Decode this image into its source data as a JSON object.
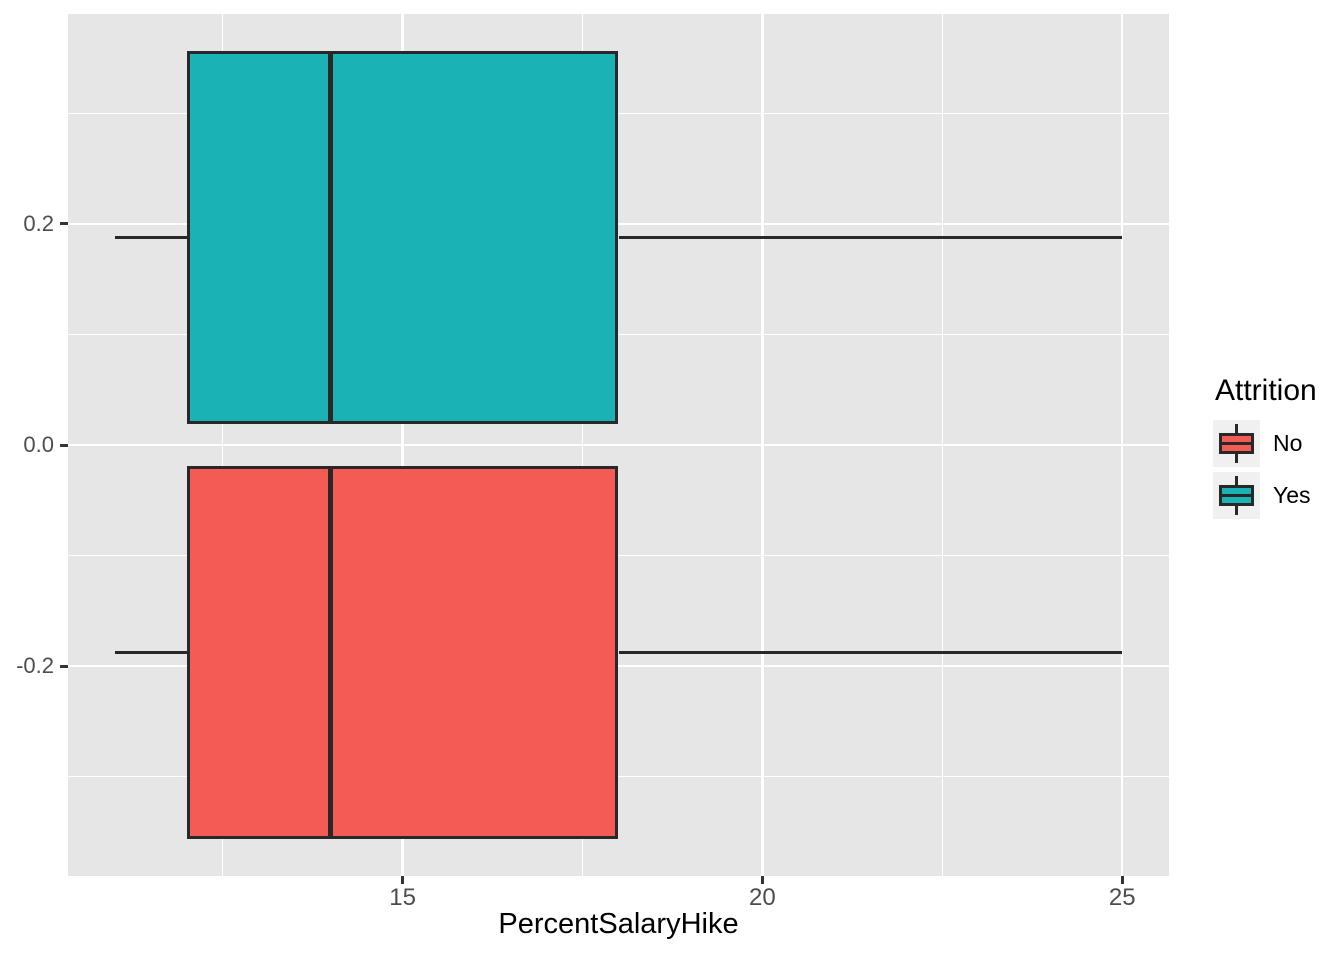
{
  "chart_data": {
    "type": "boxplot",
    "orientation": "horizontal",
    "title": "",
    "x_axis": {
      "label": "PercentSalaryHike",
      "range": [
        10.35,
        25.65
      ],
      "ticks": [
        {
          "value": 15,
          "label": "15"
        },
        {
          "value": 20,
          "label": "20"
        },
        {
          "value": 25,
          "label": "25"
        }
      ],
      "minor_ticks": [
        12.5,
        17.5,
        22.5
      ]
    },
    "y_axis": {
      "label": "",
      "range": [
        -0.39,
        0.39
      ],
      "ticks": [
        {
          "value": 0.2,
          "label": "0.2"
        },
        {
          "value": 0.0,
          "label": "0.0"
        },
        {
          "value": -0.2,
          "label": "-0.2"
        }
      ],
      "minor_ticks": [
        0.3,
        0.1,
        -0.1,
        -0.3
      ]
    },
    "series": [
      {
        "name": "Yes",
        "color": "#1BB2B6",
        "center": 0.1875,
        "box_height": 0.3375,
        "whisker_low": 11,
        "q1": 12,
        "median": 14,
        "q3": 18,
        "whisker_high": 25
      },
      {
        "name": "No",
        "color": "#F45B55",
        "center": -0.1875,
        "box_height": 0.3375,
        "whisker_low": 11,
        "q1": 12,
        "median": 14,
        "q3": 18,
        "whisker_high": 25
      }
    ],
    "legend": {
      "title": "Attrition",
      "position": "right",
      "entries": [
        {
          "label": "No",
          "color": "#F45B55"
        },
        {
          "label": "Yes",
          "color": "#1BB2B6"
        }
      ]
    },
    "colors": {
      "panel_bg": "#E6E6E6",
      "grid": "#FFFFFF",
      "stroke": "#282828",
      "tick_text": "#4D4D4D",
      "tick_mark": "#333333",
      "legend_key_bg": "#F0F0F0"
    }
  }
}
